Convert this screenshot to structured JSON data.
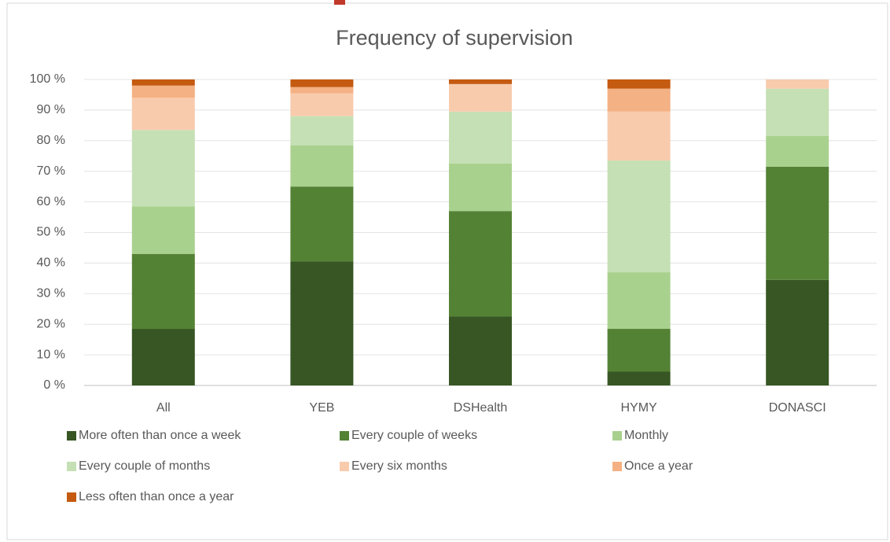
{
  "chart_data": {
    "type": "stacked_bar",
    "title": "Frequency of supervision",
    "categories": [
      "All",
      "YEB",
      "DSHealth",
      "HYMY",
      "DONASCI"
    ],
    "series": [
      {
        "name": "More often than once a week",
        "color": "#375623",
        "values": [
          18.5,
          40.5,
          22.5,
          4.5,
          34.5
        ]
      },
      {
        "name": "Every couple of weeks",
        "color": "#548235",
        "values": [
          24.5,
          24.5,
          34.5,
          14,
          37
        ]
      },
      {
        "name": "Monthly",
        "color": "#a9d18e",
        "values": [
          15.5,
          13.5,
          15.5,
          18.5,
          10
        ]
      },
      {
        "name": "Every couple of months",
        "color": "#c5e0b4",
        "values": [
          25,
          9.5,
          17,
          36.5,
          15.5
        ]
      },
      {
        "name": "Every six months",
        "color": "#f8cbad",
        "values": [
          10.5,
          7.5,
          9,
          16,
          3
        ]
      },
      {
        "name": "Once a year",
        "color": "#f4b183",
        "values": [
          4,
          2,
          0,
          7.5,
          0
        ]
      },
      {
        "name": "Less often than once a year",
        "color": "#c55a11",
        "values": [
          2,
          2.5,
          1.5,
          3,
          0
        ]
      }
    ],
    "ylim": [
      0,
      100
    ],
    "yticks": [
      {
        "value": 0,
        "label": "0 %"
      },
      {
        "value": 10,
        "label": "10 %"
      },
      {
        "value": 20,
        "label": "20 %"
      },
      {
        "value": 30,
        "label": "30 %"
      },
      {
        "value": 40,
        "label": "40 %"
      },
      {
        "value": 50,
        "label": "50 %"
      },
      {
        "value": 60,
        "label": "60 %"
      },
      {
        "value": 70,
        "label": "70 %"
      },
      {
        "value": 80,
        "label": "80 %"
      },
      {
        "value": 90,
        "label": "90 %"
      },
      {
        "value": 100,
        "label": "100 %"
      }
    ],
    "grid": true
  }
}
